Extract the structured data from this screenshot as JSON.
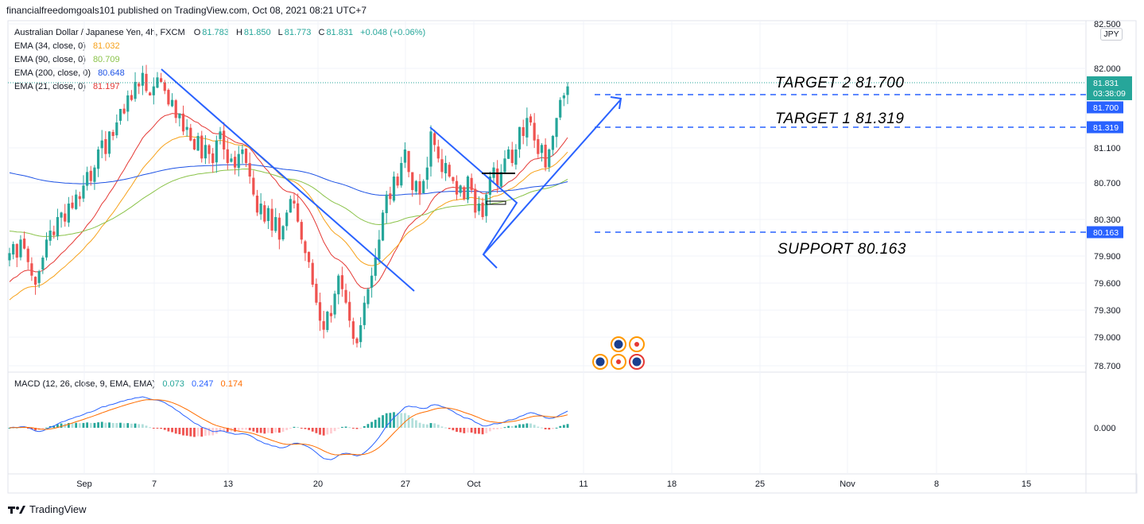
{
  "header": {
    "published_by": "financialfreedomgoals101 published on TradingView.com, Oct 08, 2021 08:21 UTC+7"
  },
  "legend": {
    "symbol": "Australian Dollar / Japanese Yen, 4h, FXCM",
    "o_label": "O",
    "o_value": "81.783",
    "h_label": "H",
    "h_value": "81.850",
    "l_label": "L",
    "l_value": "81.773",
    "c_label": "C",
    "c_value": "81.831",
    "change": "+0.048 (+0.06%)",
    "ema": [
      {
        "label": "EMA (34, close, 0)",
        "value": "81.032",
        "color": "#f7a21b"
      },
      {
        "label": "EMA (90, close, 0)",
        "value": "80.709",
        "color": "#8bc34a"
      },
      {
        "label": "EMA (200, close, 0)",
        "value": "80.648",
        "color": "#1e53e5"
      },
      {
        "label": "EMA (21, close, 0)",
        "value": "81.197",
        "color": "#e53935"
      }
    ],
    "macd": {
      "label": "MACD (12, 26, close, 9, EMA, EMA)",
      "v1": "0.073",
      "v2": "0.247",
      "v3": "0.174",
      "c1": "#26a69a",
      "c2": "#2962ff",
      "c3": "#ff6d00"
    }
  },
  "currency_button": "JPY",
  "annotations": {
    "target2": "TARGET 2  81.700",
    "target1": "TARGET 1  81.319",
    "support": "SUPPORT 80.163"
  },
  "price_tags": {
    "last_price": "81.831",
    "countdown": "03:38:09",
    "target2": "81.700",
    "target1": "81.319",
    "support": "80.163"
  },
  "footer": {
    "brand": "TradingView"
  },
  "colors": {
    "up": "#26a69a",
    "down": "#ef5350",
    "line_blue": "#2962ff",
    "grid": "#f0f3fa"
  },
  "chart_data": {
    "type": "candlestick",
    "symbol": "AUDJPY",
    "timeframe": "4h",
    "price_axis": {
      "ticks": [
        "82.500",
        "82.000",
        "81.100",
        "80.700",
        "80.300",
        "79.900",
        "79.600",
        "79.300",
        "79.000",
        "78.700"
      ],
      "range": [
        78.7,
        82.5
      ]
    },
    "macd_axis": {
      "ticks": [
        "0.000"
      ]
    },
    "time_axis": {
      "ticks": [
        "Sep",
        "7",
        "13",
        "20",
        "27",
        "Oct",
        "11",
        "18",
        "25",
        "Nov",
        "8",
        "15"
      ]
    },
    "levels": [
      {
        "name": "target2",
        "value": 81.7
      },
      {
        "name": "target1",
        "value": 81.319
      },
      {
        "name": "support",
        "value": 80.163
      }
    ],
    "close": [
      79.95,
      80.05,
      79.9,
      80.1,
      80.0,
      79.85,
      79.7,
      79.6,
      79.75,
      79.9,
      80.1,
      80.2,
      80.15,
      80.35,
      80.4,
      80.3,
      80.5,
      80.45,
      80.6,
      80.55,
      80.7,
      80.85,
      80.75,
      80.9,
      81.1,
      81.2,
      81.05,
      81.3,
      81.25,
      81.4,
      81.55,
      81.5,
      81.7,
      81.65,
      81.85,
      81.8,
      81.95,
      81.75,
      81.7,
      81.8,
      81.9,
      81.85,
      81.75,
      81.6,
      81.65,
      81.45,
      81.5,
      81.3,
      81.35,
      81.2,
      81.1,
      81.25,
      81.0,
      81.15,
      81.05,
      80.95,
      81.2,
      81.3,
      81.1,
      80.95,
      81.0,
      80.9,
      81.05,
      81.1,
      80.95,
      80.8,
      80.6,
      80.4,
      80.5,
      80.3,
      80.45,
      80.2,
      80.35,
      80.1,
      80.25,
      80.4,
      80.55,
      80.5,
      80.3,
      80.1,
      79.95,
      79.85,
      79.6,
      79.4,
      79.2,
      79.1,
      79.3,
      79.25,
      79.5,
      79.7,
      79.55,
      79.4,
      79.2,
      79.0,
      78.95,
      79.15,
      79.4,
      79.55,
      79.7,
      79.9,
      80.1,
      80.4,
      80.6,
      80.55,
      80.8,
      80.7,
      80.95,
      81.1,
      80.85,
      80.65,
      80.75,
      80.6,
      80.75,
      80.9,
      81.3,
      81.15,
      81.0,
      80.85,
      80.95,
      80.8,
      80.75,
      80.6,
      80.7,
      80.55,
      80.8,
      80.65,
      80.4,
      80.5,
      80.35,
      80.6,
      80.8,
      80.9,
      80.7,
      80.85,
      81.0,
      81.1,
      80.95,
      81.1,
      81.35,
      81.25,
      81.45,
      81.4,
      81.2,
      81.05,
      81.15,
      80.9,
      81.1,
      81.25,
      81.45,
      81.65,
      81.7,
      81.8
    ]
  }
}
